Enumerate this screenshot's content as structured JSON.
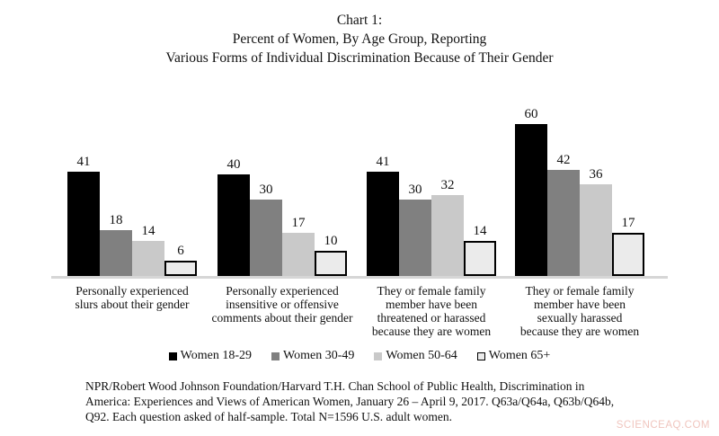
{
  "title": {
    "lines": [
      "Chart 1:",
      "Percent of Women, By Age Group, Reporting",
      "Various Forms of Individual Discrimination Because of Their Gender"
    ]
  },
  "chart_data": {
    "type": "bar",
    "title": "Chart 1: Percent of Women, By Age Group, Reporting Various Forms of Individual Discrimination Because of Their Gender",
    "categories": [
      "Personally experienced slurs about their gender",
      "Personally experienced insensitive or offensive comments about their gender",
      "They or female family member have been threatened or harassed because they are women",
      "They or female family member have been sexually harassed because they are women"
    ],
    "category_label_lines": [
      [
        "Personally experienced",
        "slurs about their gender"
      ],
      [
        "Personally experienced",
        "insensitive or offensive",
        "comments about their gender"
      ],
      [
        "They or female family",
        "member have been",
        "threatened or harassed",
        "because they are women"
      ],
      [
        "They or female family",
        "member have been",
        "sexually harassed",
        "because they are women"
      ]
    ],
    "series": [
      {
        "name": "Women 18-29",
        "color": "#000000",
        "values": [
          41,
          40,
          41,
          60
        ]
      },
      {
        "name": "Women 30-49",
        "color": "#808080",
        "values": [
          18,
          30,
          30,
          42
        ]
      },
      {
        "name": "Women 50-64",
        "color": "#c9c9c9",
        "values": [
          14,
          17,
          32,
          36
        ]
      },
      {
        "name": "Women 65+",
        "color": "#ebebeb",
        "border_color": "#000000",
        "values": [
          6,
          10,
          14,
          17
        ]
      }
    ],
    "ylim": [
      0,
      65
    ],
    "data_labels": true,
    "grid": false,
    "y_axis_visible": false,
    "x_axis_color": "#d6d6d6",
    "legend_position": "bottom"
  },
  "footnote": {
    "lines": [
      "NPR/Robert Wood Johnson Foundation/Harvard T.H. Chan School of Public Health, Discrimination in",
      "America: Experiences and Views of American Women, January 26 – April 9, 2017. Q63a/Q64a, Q63b/Q64b,",
      "Q92. Each question asked of half-sample. Total N=1596 U.S. adult women."
    ]
  },
  "watermark": {
    "text": "SCIENCEAQ.COM",
    "color": "#f0c5be"
  }
}
